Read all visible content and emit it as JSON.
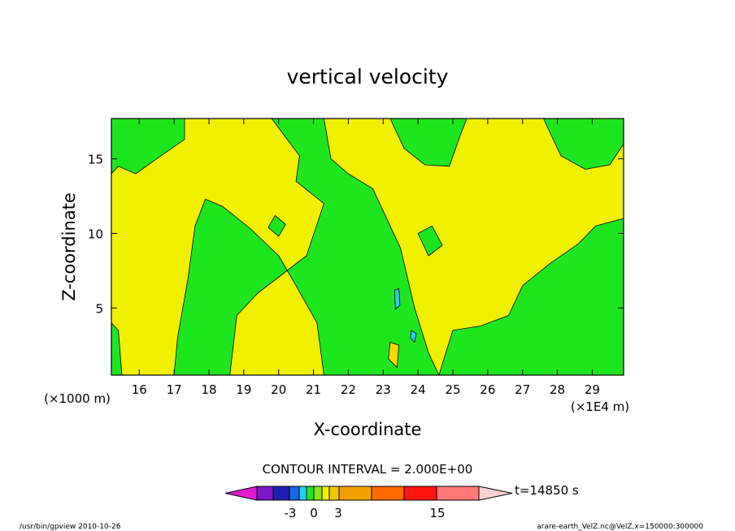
{
  "chart_data": {
    "type": "heatmap",
    "title": "vertical velocity",
    "xlabel": "X-coordinate",
    "ylabel": "Z-coordinate",
    "x_unit_left": "(×1000 m)",
    "x_unit_right": "(×1E4 m)",
    "xlim": [
      15.2,
      29.9
    ],
    "ylim": [
      0.5,
      17.7
    ],
    "x_ticks": [
      16,
      17,
      18,
      19,
      20,
      21,
      22,
      23,
      24,
      25,
      26,
      27,
      28,
      29
    ],
    "y_ticks": [
      5,
      10,
      15
    ],
    "contour_interval": "CONTOUR INTERVAL = 2.000E+00",
    "time": "t=14850 s",
    "colorbar": {
      "colors": [
        "#e01cd0",
        "#7a18c8",
        "#1e1eb4",
        "#1f63e8",
        "#1ed2f0",
        "#1ee61e",
        "#8ce619",
        "#f0f000",
        "#f0c800",
        "#f0a000",
        "#ff6a00",
        "#ff1414",
        "#ff7878",
        "#ffbcc4",
        "#ffd2d2"
      ],
      "labels": [
        {
          "text": "-3",
          "value": -3
        },
        {
          "text": "0",
          "value": 0
        },
        {
          "text": "3",
          "value": 3
        },
        {
          "text": "15",
          "value": 15
        }
      ]
    },
    "field_colors": {
      "background": "#f0f000",
      "positive_weak": "#ffd700",
      "negative": "#1ee61e",
      "strong_negative": "#1ed2f0"
    },
    "regions": [
      {
        "label": "negative updraft zone (top-left)",
        "points": [
          [
            15.2,
            17.7
          ],
          [
            17.3,
            17.7
          ],
          [
            17.3,
            16.3
          ],
          [
            16.5,
            15.0
          ],
          [
            15.9,
            14.0
          ],
          [
            15.4,
            14.5
          ],
          [
            15.2,
            14.0
          ]
        ]
      },
      {
        "label": "central descending plume",
        "points": [
          [
            19.8,
            17.7
          ],
          [
            21.3,
            17.7
          ],
          [
            21.5,
            15.0
          ],
          [
            22.0,
            14.0
          ],
          [
            22.7,
            13.0
          ],
          [
            23.1,
            11.0
          ],
          [
            23.5,
            9.0
          ],
          [
            23.9,
            5.0
          ],
          [
            24.3,
            2.0
          ],
          [
            24.6,
            0.5
          ],
          [
            21.3,
            0.5
          ],
          [
            21.1,
            4.0
          ],
          [
            20.5,
            6.5
          ],
          [
            20.0,
            8.5
          ],
          [
            19.2,
            10.3
          ],
          [
            18.4,
            11.8
          ],
          [
            17.9,
            12.3
          ],
          [
            17.6,
            10.5
          ],
          [
            17.4,
            7.0
          ],
          [
            17.1,
            3.0
          ],
          [
            17.0,
            0.5
          ],
          [
            18.6,
            0.5
          ],
          [
            18.8,
            4.5
          ],
          [
            19.4,
            6.0
          ],
          [
            20.8,
            8.5
          ],
          [
            21.3,
            12.0
          ],
          [
            20.5,
            13.5
          ],
          [
            20.6,
            15.2
          ]
        ]
      },
      {
        "label": "top band near x=24",
        "points": [
          [
            23.2,
            17.7
          ],
          [
            25.4,
            17.7
          ],
          [
            25.2,
            16.5
          ],
          [
            24.9,
            14.5
          ],
          [
            24.2,
            14.6
          ],
          [
            23.6,
            15.7
          ]
        ]
      },
      {
        "label": "top-right patch",
        "points": [
          [
            27.6,
            17.7
          ],
          [
            29.9,
            17.7
          ],
          [
            29.9,
            16.0
          ],
          [
            29.5,
            14.6
          ],
          [
            28.8,
            14.3
          ],
          [
            28.1,
            15.2
          ]
        ]
      },
      {
        "label": "right lower zone",
        "points": [
          [
            24.6,
            0.5
          ],
          [
            29.9,
            0.5
          ],
          [
            29.9,
            11.0
          ],
          [
            29.1,
            10.5
          ],
          [
            28.6,
            9.3
          ],
          [
            27.8,
            8.0
          ],
          [
            27.0,
            6.5
          ],
          [
            26.6,
            4.5
          ],
          [
            25.8,
            3.8
          ],
          [
            25.0,
            3.5
          ],
          [
            24.8,
            2.0
          ]
        ]
      },
      {
        "label": "left edge column",
        "points": [
          [
            15.2,
            0.5
          ],
          [
            15.5,
            0.5
          ],
          [
            15.4,
            3.5
          ],
          [
            15.2,
            4.0
          ]
        ]
      },
      {
        "label": "small patch near x=20",
        "points": [
          [
            19.9,
            11.2
          ],
          [
            20.2,
            10.6
          ],
          [
            20.0,
            9.8
          ],
          [
            19.7,
            10.4
          ]
        ]
      },
      {
        "label": "patch near x=24.5",
        "points": [
          [
            24.0,
            10.0
          ],
          [
            24.4,
            10.5
          ],
          [
            24.7,
            9.2
          ],
          [
            24.3,
            8.5
          ]
        ]
      },
      {
        "label": "blue cell near x=23.4",
        "points": [
          [
            23.33,
            6.2
          ],
          [
            23.45,
            6.3
          ],
          [
            23.48,
            5.2
          ],
          [
            23.35,
            4.9
          ]
        ]
      },
      {
        "label": "blue cell near x=23.9",
        "points": [
          [
            23.8,
            3.5
          ],
          [
            23.95,
            3.3
          ],
          [
            23.9,
            2.7
          ],
          [
            23.78,
            3.0
          ]
        ]
      },
      {
        "label": "orange cell near x=23.3",
        "points": [
          [
            23.2,
            2.7
          ],
          [
            23.45,
            2.5
          ],
          [
            23.4,
            1.0
          ],
          [
            23.15,
            1.6
          ]
        ]
      }
    ]
  },
  "footer": {
    "left": "/usr/bin/gpview  2010-10-26",
    "right": "arare-earth_VelZ.nc@VelZ,x=150000:300000"
  }
}
